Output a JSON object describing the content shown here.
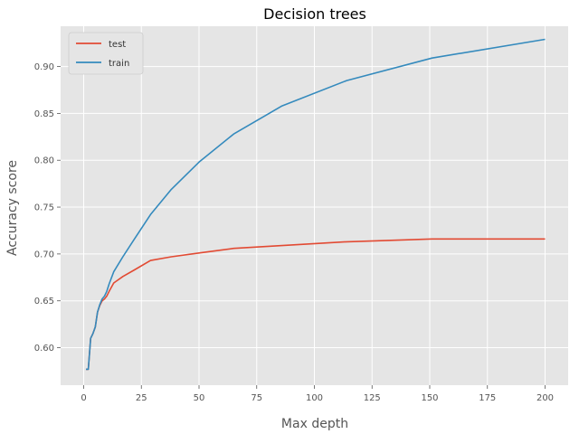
{
  "chart_data": {
    "type": "line",
    "title": "Decision trees",
    "xlabel": "Max depth",
    "ylabel": "Accuracy score",
    "xlim": [
      -10,
      210
    ],
    "ylim": [
      0.56,
      0.943
    ],
    "xticks": [
      0,
      25,
      50,
      75,
      100,
      125,
      150,
      175,
      200
    ],
    "yticks": [
      0.6,
      0.65,
      0.7,
      0.75,
      0.8,
      0.85,
      0.9
    ],
    "ytick_labels": [
      "0.60",
      "0.65",
      "0.70",
      "0.75",
      "0.80",
      "0.85",
      "0.90"
    ],
    "grid": true,
    "legend_position": "upper-left",
    "series": [
      {
        "name": "test",
        "color": "#e24a33",
        "points": [
          [
            1,
            0.577
          ],
          [
            2,
            0.577
          ],
          [
            3,
            0.61
          ],
          [
            4,
            0.615
          ],
          [
            5,
            0.622
          ],
          [
            6,
            0.638
          ],
          [
            7,
            0.645
          ],
          [
            8,
            0.65
          ],
          [
            9,
            0.652
          ],
          [
            10,
            0.655
          ],
          [
            11,
            0.66
          ],
          [
            13,
            0.669
          ],
          [
            17,
            0.676
          ],
          [
            22,
            0.683
          ],
          [
            29,
            0.693
          ],
          [
            38,
            0.697
          ],
          [
            50,
            0.701
          ],
          [
            65,
            0.706
          ],
          [
            86,
            0.709
          ],
          [
            114,
            0.713
          ],
          [
            151,
            0.716
          ],
          [
            200,
            0.716
          ]
        ]
      },
      {
        "name": "train",
        "color": "#348abd",
        "points": [
          [
            1,
            0.577
          ],
          [
            2,
            0.577
          ],
          [
            3,
            0.61
          ],
          [
            4,
            0.615
          ],
          [
            5,
            0.622
          ],
          [
            6,
            0.638
          ],
          [
            7,
            0.646
          ],
          [
            8,
            0.652
          ],
          [
            9,
            0.655
          ],
          [
            10,
            0.66
          ],
          [
            11,
            0.668
          ],
          [
            13,
            0.681
          ],
          [
            17,
            0.697
          ],
          [
            22,
            0.716
          ],
          [
            29,
            0.742
          ],
          [
            38,
            0.769
          ],
          [
            50,
            0.798
          ],
          [
            65,
            0.828
          ],
          [
            86,
            0.858
          ],
          [
            114,
            0.885
          ],
          [
            151,
            0.909
          ],
          [
            200,
            0.929
          ]
        ]
      }
    ]
  }
}
